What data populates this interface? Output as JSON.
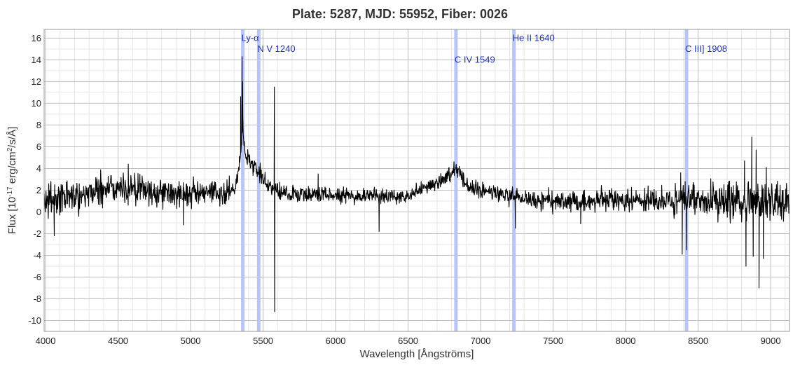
{
  "chart_data": {
    "type": "line",
    "title": "Plate: 5287, MJD: 55952, Fiber: 0026",
    "xlabel": "Wavelength [Ångströms]",
    "ylabel": "Flux [10^-17 erg/cm^2/s/Å]",
    "ylabel_parts": {
      "prefix": "Flux [10",
      "exp1": "-17",
      "mid": " erg/cm",
      "exp2": "2",
      "suffix": "/s/Å]"
    },
    "xlim": [
      3990,
      9130
    ],
    "ylim": [
      -11,
      16.8
    ],
    "grid": true,
    "x_ticks": [
      4000,
      4500,
      5000,
      5500,
      6000,
      6500,
      7000,
      7500,
      8000,
      8500,
      9000
    ],
    "y_ticks": [
      -10,
      -8,
      -6,
      -4,
      -2,
      0,
      2,
      4,
      6,
      8,
      10,
      12,
      14,
      16
    ],
    "emission_lines": [
      {
        "label": "Ly-α",
        "x": 5360,
        "label_y": 16
      },
      {
        "label": "N V 1240",
        "x": 5470,
        "label_y": 15
      },
      {
        "label": "C IV 1549",
        "x": 6830,
        "label_y": 14
      },
      {
        "label": "He II 1640",
        "x": 7230,
        "label_y": 16
      },
      {
        "label": "C III] 1908",
        "x": 8420,
        "label_y": 15
      }
    ],
    "series": [
      {
        "color": "#000000",
        "continuum": [
          [
            3990,
            1.0
          ],
          [
            4200,
            1.5
          ],
          [
            4450,
            2.3
          ],
          [
            4600,
            2.1
          ],
          [
            4750,
            1.8
          ],
          [
            4900,
            1.7
          ],
          [
            5100,
            1.6
          ],
          [
            5250,
            1.8
          ],
          [
            5300,
            2.4
          ],
          [
            5330,
            3.5
          ],
          [
            5345,
            5.5
          ],
          [
            5360,
            8.0
          ],
          [
            5380,
            5.0
          ],
          [
            5420,
            4.3
          ],
          [
            5480,
            3.6
          ],
          [
            5520,
            2.6
          ],
          [
            5600,
            1.9
          ],
          [
            5750,
            1.6
          ],
          [
            5900,
            1.6
          ],
          [
            6000,
            1.6
          ],
          [
            6200,
            1.5
          ],
          [
            6400,
            1.4
          ],
          [
            6500,
            1.6
          ],
          [
            6650,
            2.4
          ],
          [
            6760,
            3.2
          ],
          [
            6830,
            4.2
          ],
          [
            6900,
            2.5
          ],
          [
            7000,
            1.9
          ],
          [
            7150,
            1.6
          ],
          [
            7300,
            1.2
          ],
          [
            7500,
            1.0
          ],
          [
            7700,
            1.0
          ],
          [
            8000,
            1.0
          ],
          [
            8300,
            1.0
          ],
          [
            8500,
            1.1
          ],
          [
            8800,
            1.0
          ],
          [
            9130,
            0.9
          ]
        ],
        "peaks": [
          [
            5345,
            10.6
          ],
          [
            5355,
            14.3
          ],
          [
            5358,
            12.0
          ],
          [
            5578,
            11.5
          ],
          [
            5580,
            -9.2
          ],
          [
            4060,
            -2.2
          ],
          [
            4570,
            4.4
          ],
          [
            4950,
            -1.2
          ],
          [
            5880,
            3.5
          ],
          [
            6300,
            -1.8
          ],
          [
            6350,
            1.1
          ],
          [
            7240,
            -1.5
          ],
          [
            7690,
            -1.1
          ],
          [
            8380,
            3.6
          ],
          [
            8390,
            -3.9
          ],
          [
            8420,
            -3.5
          ],
          [
            8820,
            4.7
          ],
          [
            8830,
            -5.0
          ],
          [
            8870,
            6.9
          ],
          [
            8880,
            -4.1
          ],
          [
            8900,
            5.7
          ],
          [
            8920,
            -7.0
          ],
          [
            8950,
            -4.3
          ],
          [
            8970,
            4.1
          ],
          [
            9040,
            2.5
          ]
        ],
        "noise": [
          [
            3990,
            1.1
          ],
          [
            4500,
            1.2
          ],
          [
            5000,
            0.9
          ],
          [
            5600,
            0.6
          ],
          [
            6500,
            0.5
          ],
          [
            7000,
            0.5
          ],
          [
            7500,
            0.7
          ],
          [
            8000,
            0.8
          ],
          [
            8300,
            1.0
          ],
          [
            8700,
            1.3
          ],
          [
            9130,
            1.2
          ]
        ]
      }
    ]
  }
}
